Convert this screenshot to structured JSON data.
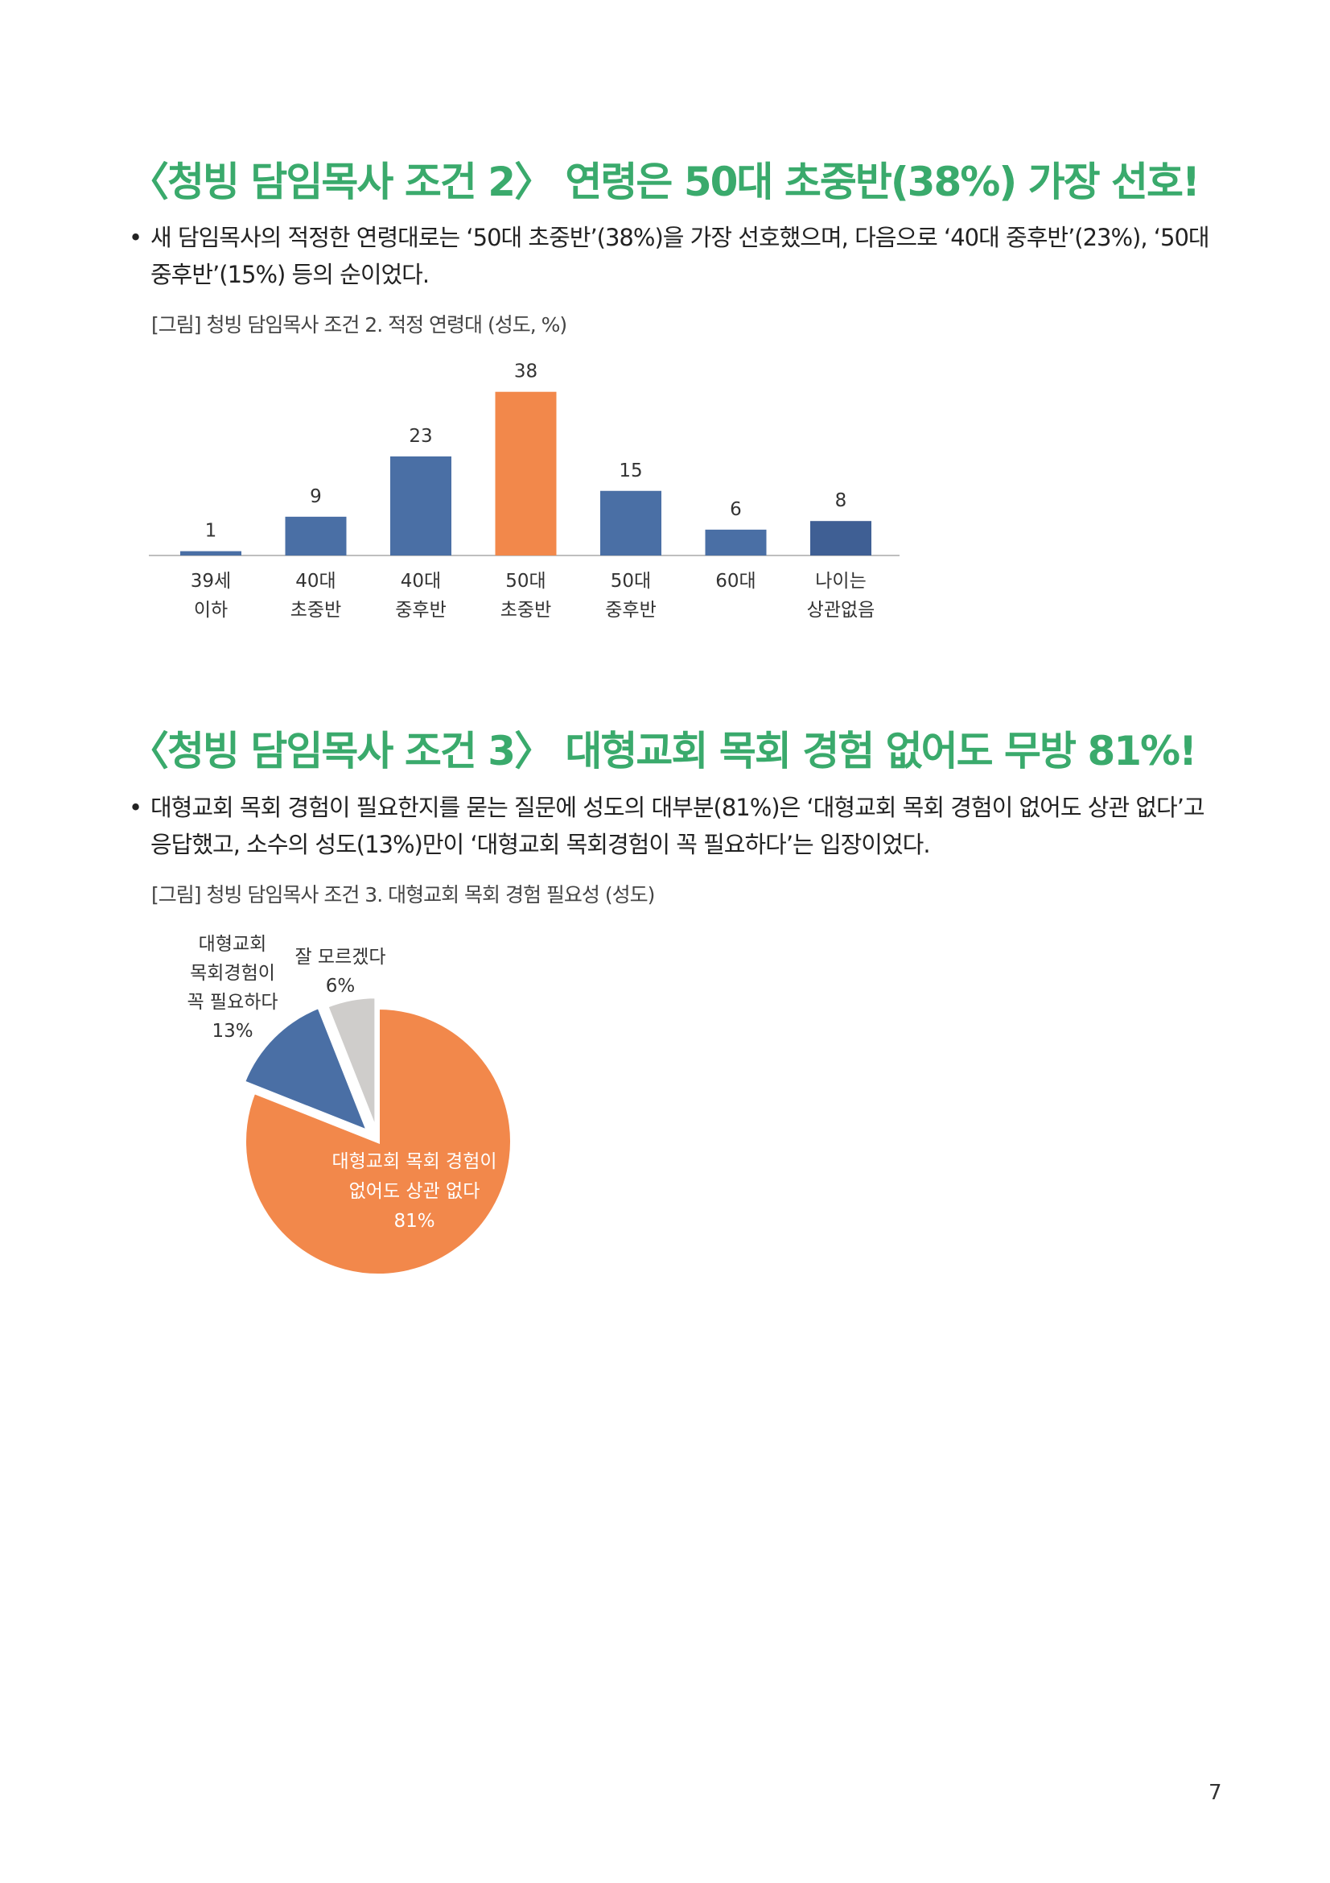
{
  "section1": {
    "title": "〈청빙 담임목사 조건 2〉 연령은 50대 초중반(38%) 가장 선호!",
    "bullet": "새 담임목사의 적정한 연령대로는 ‘50대 초중반’(38%)을 가장 선호했으며, 다음으로 ‘40대 중후반’(23%), ‘50대 중후반’(15%) 등의 순이었다.",
    "figure_caption": "[그림] 청빙 담임목사 조건 2. 적정 연령대 (성도, %)"
  },
  "section2": {
    "title": "〈청빙 담임목사 조건 3〉 대형교회 목회 경험 없어도 무방 81%!",
    "bullet": "대형교회 목회 경험이 필요한지를 묻는 질문에 성도의 대부분(81%)은 ‘대형교회 목회 경험이 없어도 상관 없다’고 응답했고, 소수의 성도(13%)만이 ‘대형교회 목회경험이 꼭 필요하다’는 입장이었다.",
    "figure_caption": "[그림] 청빙 담임목사 조건 3. 대형교회 목회 경험 필요성 (성도)"
  },
  "chart_data": [
    {
      "type": "bar",
      "categories": [
        [
          "39세",
          "이하"
        ],
        [
          "40대",
          "초중반"
        ],
        [
          "40대",
          "중후반"
        ],
        [
          "50대",
          "초중반"
        ],
        [
          "50대",
          "중후반"
        ],
        [
          "60대"
        ],
        [
          "나이는",
          "상관없음"
        ]
      ],
      "values": [
        1,
        9,
        23,
        38,
        15,
        6,
        8
      ],
      "colors": [
        "#4a6fa5",
        "#4a6fa5",
        "#4a6fa5",
        "#f2884b",
        "#4a6fa5",
        "#4a6fa5",
        "#3f5f94"
      ],
      "ylim": [
        0,
        40
      ],
      "grid": false,
      "data_labels": true
    },
    {
      "type": "pie",
      "slices": [
        {
          "label": [
            "대형교회 목회 경험이",
            "없어도 상관 없다"
          ],
          "value": 81,
          "display": "81%",
          "color": "#f2884b"
        },
        {
          "label": [
            "대형교회",
            "목회경험이",
            "꼭 필요하다"
          ],
          "value": 13,
          "display": "13%",
          "color": "#4a6fa5"
        },
        {
          "label": [
            "잘 모르겠다"
          ],
          "value": 6,
          "display": "6%",
          "color": "#cfcdcb"
        }
      ]
    }
  ],
  "page_number": "7"
}
